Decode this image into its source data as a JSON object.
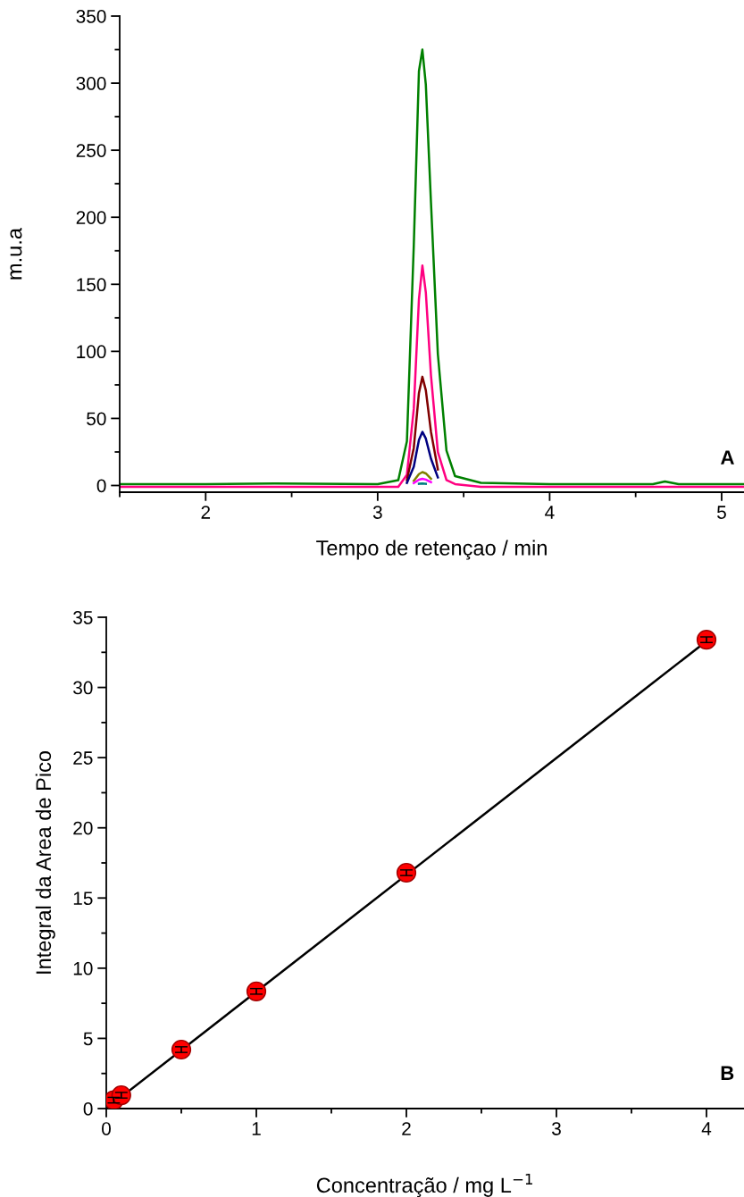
{
  "chart_data": [
    {
      "type": "line",
      "xlabel": "Tempo de retençao / min",
      "ylabel": "m.u.a",
      "annotations": [
        "A"
      ],
      "x": [
        1.5,
        2.0,
        2.4,
        3.0,
        3.12,
        3.17,
        3.21,
        3.24,
        3.26,
        3.28,
        3.31,
        3.35,
        3.4,
        3.45,
        3.6,
        4.0,
        4.6,
        4.67,
        4.75,
        5.13
      ],
      "xlim": [
        1.5,
        5.13
      ],
      "xticks": [
        2,
        3,
        4,
        5
      ],
      "ylim": [
        -5,
        350
      ],
      "yticks": [
        0,
        50,
        100,
        150,
        200,
        250,
        300,
        350
      ],
      "grid": false,
      "legend": false,
      "line_style": "solid",
      "series": [
        {
          "color": "#008000",
          "values": [
            1,
            1,
            1.5,
            1,
            4,
            33,
            179,
            309,
            325,
            299,
            211,
            98,
            26,
            7,
            2,
            1,
            1,
            3,
            1,
            1
          ]
        },
        {
          "color": "#ff0080",
          "values": [
            -1,
            -1,
            -1,
            -1,
            -1,
            8,
            57,
            139,
            164,
            144,
            82,
            25,
            4,
            1,
            -1,
            -1,
            -1,
            -1,
            -1,
            -1
          ]
        },
        {
          "color": "#800000",
          "values": [
            null,
            null,
            null,
            null,
            null,
            4,
            28,
            69,
            81,
            71,
            40,
            12,
            null,
            null,
            null,
            null,
            null,
            null,
            null,
            null
          ]
        },
        {
          "color": "#000080",
          "values": [
            null,
            null,
            null,
            null,
            null,
            2,
            14,
            34,
            40,
            35,
            20,
            6,
            null,
            null,
            null,
            null,
            null,
            null,
            null,
            null
          ]
        },
        {
          "color": "#808000",
          "values": [
            null,
            null,
            null,
            null,
            null,
            null,
            3.5,
            8.5,
            10,
            9,
            5,
            null,
            null,
            null,
            null,
            null,
            null,
            null,
            null,
            null
          ]
        },
        {
          "color": "#ff00ff",
          "values": [
            null,
            null,
            null,
            null,
            null,
            null,
            1.8,
            4.3,
            5,
            4.4,
            2.5,
            null,
            null,
            null,
            null,
            null,
            null,
            null,
            null,
            null
          ]
        },
        {
          "color": "#008080",
          "values": [
            null,
            null,
            null,
            null,
            null,
            null,
            null,
            1.3,
            1.5,
            1.3,
            null,
            null,
            null,
            null,
            null,
            null,
            null,
            null,
            null,
            null
          ]
        }
      ]
    },
    {
      "type": "scatter",
      "xlabel": "Concentração / mg L$^{−1}$",
      "ylabel": "Integral da Area de Pico",
      "annotations": [
        "B"
      ],
      "xlim": [
        0,
        4.25
      ],
      "xticks": [
        0,
        1,
        2,
        3,
        4
      ],
      "ylim": [
        0,
        35
      ],
      "yticks": [
        0,
        5,
        10,
        15,
        20,
        25,
        30,
        35
      ],
      "grid": false,
      "legend": false,
      "series": [
        {
          "type": "line",
          "color": "#000000",
          "x": [
            0,
            4
          ],
          "values": [
            0,
            33.3
          ],
          "line_style": "solid"
        },
        {
          "type": "scatter",
          "marker": "circle",
          "color": "#ff0000",
          "x": [
            0.05,
            0.1,
            0.5,
            1,
            2,
            4
          ],
          "values": [
            0.6,
            0.95,
            4.2,
            8.35,
            16.8,
            33.4
          ],
          "errors": [
            0.2,
            0.2,
            0.2,
            0.2,
            0.2,
            0.2
          ]
        }
      ]
    }
  ]
}
